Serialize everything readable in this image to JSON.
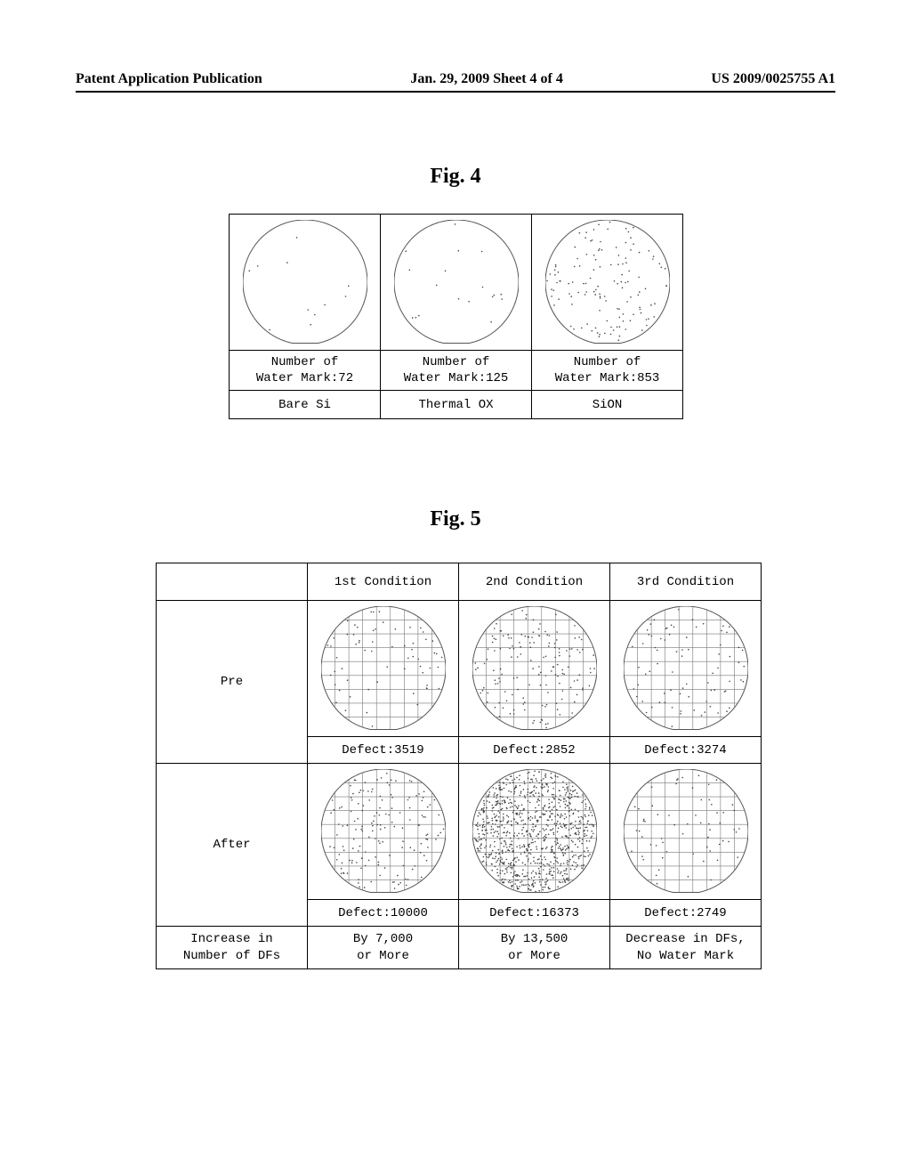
{
  "header": {
    "left": "Patent Application Publication",
    "center": "Jan. 29, 2009  Sheet 4 of 4",
    "right": "US 2009/0025755 A1"
  },
  "fig4": {
    "label": "Fig. 4",
    "columns": [
      {
        "count_label": "Number of",
        "count_value": "Water Mark:72",
        "material": "Bare Si",
        "density": 0.0007,
        "grid": false
      },
      {
        "count_label": "Number of",
        "count_value": "Water Mark:125",
        "material": "Thermal OX",
        "density": 0.0012,
        "grid": false
      },
      {
        "count_label": "Number of",
        "count_value": "Water Mark:853",
        "material": "SiON",
        "density": 0.0085,
        "grid": false
      }
    ]
  },
  "fig5": {
    "label": "Fig. 5",
    "row_labels": {
      "pre": "Pre",
      "after": "After",
      "footer": "Increase in\nNumber of DFs"
    },
    "columns": [
      {
        "header": "1st Condition",
        "pre": {
          "defect_label": "Defect:3519",
          "density": 0.004,
          "grid": true
        },
        "after": {
          "defect_label": "Defect:10000",
          "density": 0.01,
          "grid": true
        },
        "footer": "By 7,000\nor More"
      },
      {
        "header": "2nd Condition",
        "pre": {
          "defect_label": "Defect:2852",
          "density": 0.01,
          "grid": true
        },
        "after": {
          "defect_label": "Defect:16373",
          "density": 0.06,
          "grid": true
        },
        "footer": "By 13,500\nor More"
      },
      {
        "header": "3rd Condition",
        "pre": {
          "defect_label": "Defect:3274",
          "density": 0.005,
          "grid": true
        },
        "after": {
          "defect_label": "Defect:2749",
          "density": 0.004,
          "grid": true
        },
        "footer": "Decrease in DFs,\nNo Water Mark"
      }
    ]
  },
  "style": {
    "wafer_diameter": 140,
    "wafer_stroke": "#555555",
    "dot_color": "#444444",
    "dot_radius": 0.8,
    "grid_color": "#777777",
    "background": "#ffffff"
  }
}
